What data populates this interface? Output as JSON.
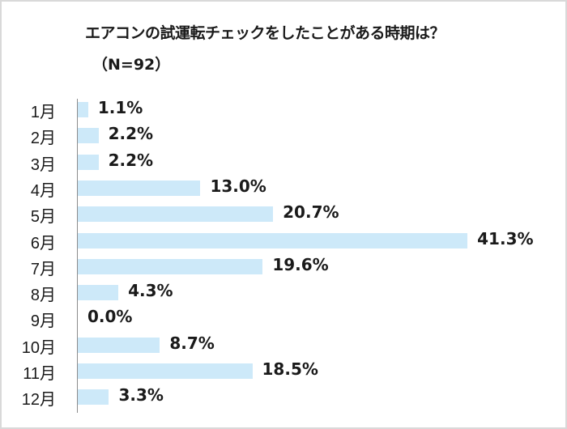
{
  "chart_data": {
    "type": "bar",
    "orientation": "horizontal",
    "title": "エアコンの試運転チェックをしたことがある時期は？",
    "subtitle": "（N=92）",
    "categories": [
      "1月",
      "2月",
      "3月",
      "4月",
      "5月",
      "6月",
      "7月",
      "8月",
      "9月",
      "10月",
      "11月",
      "12月"
    ],
    "values": [
      1.1,
      2.2,
      2.2,
      13.0,
      20.7,
      41.3,
      19.6,
      4.3,
      0.0,
      8.7,
      18.5,
      3.3
    ],
    "value_labels": [
      "1.1%",
      "2.2%",
      "2.2%",
      "13.0%",
      "20.7%",
      "41.3%",
      "19.6%",
      "4.3%",
      "0.0%",
      "8.7%",
      "18.5%",
      "3.3%"
    ],
    "xlabel": "",
    "ylabel": "",
    "grid": false,
    "legend": null,
    "bar_color": "#cde9f9",
    "border_color": "#d9d9d9"
  }
}
